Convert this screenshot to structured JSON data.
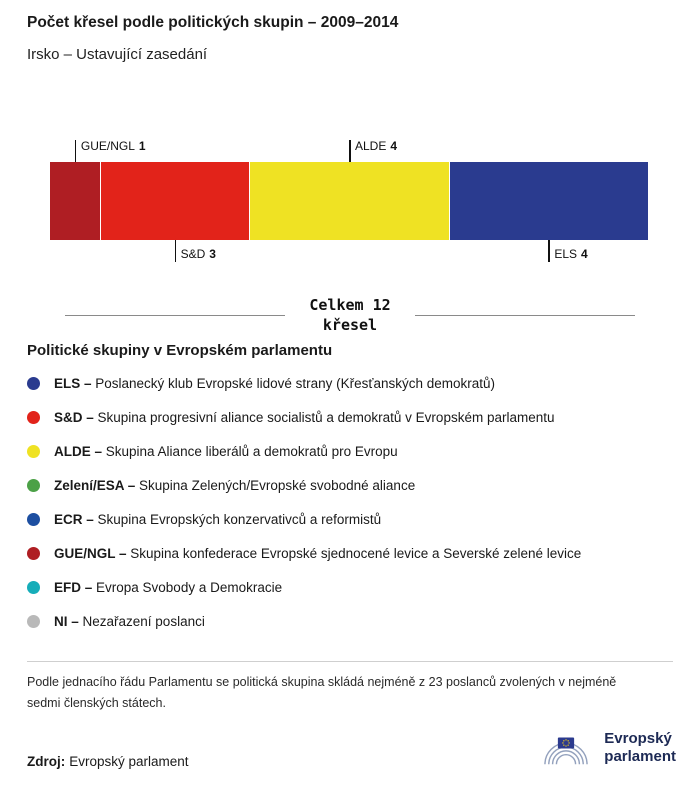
{
  "header": {
    "title": "Počet křesel podle politických skupin – 2009–2014",
    "subtitle": "Irsko – Ustavující zasedání"
  },
  "chart_data": {
    "type": "bar",
    "variant": "horizontal-stacked",
    "title": "Počet křesel podle politických skupin – 2009–2014",
    "subtitle": "Irsko – Ustavující zasedání",
    "total": 12,
    "total_label_line1": "Celkem 12",
    "total_label_line2": "křesel",
    "segments": [
      {
        "name": "GUE/NGL",
        "value": 1,
        "color": "#AF1E23",
        "label_position": "above"
      },
      {
        "name": "S&D",
        "value": 3,
        "color": "#E2231A",
        "label_position": "below"
      },
      {
        "name": "ALDE",
        "value": 4,
        "color": "#EFE223",
        "label_position": "above"
      },
      {
        "name": "ELS",
        "value": 4,
        "color": "#2A3B8F",
        "label_position": "below"
      }
    ]
  },
  "legend": {
    "heading": "Politické skupiny v Evropském parlamentu",
    "separator": "–",
    "items": [
      {
        "name": "ELS",
        "color": "#2A3B8F",
        "description": "Poslanecký klub Evropské lidové strany (Křesťanských demokratů)"
      },
      {
        "name": "S&D",
        "color": "#E2231A",
        "description": "Skupina progresivní aliance socialistů a demokratů v Evropském parlamentu"
      },
      {
        "name": "ALDE",
        "color": "#EFE223",
        "description": "Skupina Aliance liberálů a demokratů pro Evropu"
      },
      {
        "name": "Zelení/ESA",
        "color": "#4CA147",
        "description": "Skupina Zelených/Evropské svobodné aliance"
      },
      {
        "name": "ECR",
        "color": "#1D4FA1",
        "description": "Skupina Evropských konzervativců a reformistů"
      },
      {
        "name": "GUE/NGL",
        "color": "#AF1E23",
        "description": "Skupina konfederace Evropské sjednocené levice a Severské zelené levice"
      },
      {
        "name": "EFD",
        "color": "#16ADB9",
        "description": "Evropa Svobody a Demokracie"
      },
      {
        "name": "NI",
        "color": "#B9B9B9",
        "description": "Nezařazení poslanci"
      }
    ]
  },
  "footnote": "Podle jednacího řádu Parlamentu se politická skupina skládá nejméně z 23 poslanců zvolených v nejméně sedmi členských státech.",
  "source": {
    "label": "Zdroj:",
    "value": "Evropský parlament"
  },
  "logo": {
    "line1": "Evropský",
    "line2": "parlament"
  }
}
